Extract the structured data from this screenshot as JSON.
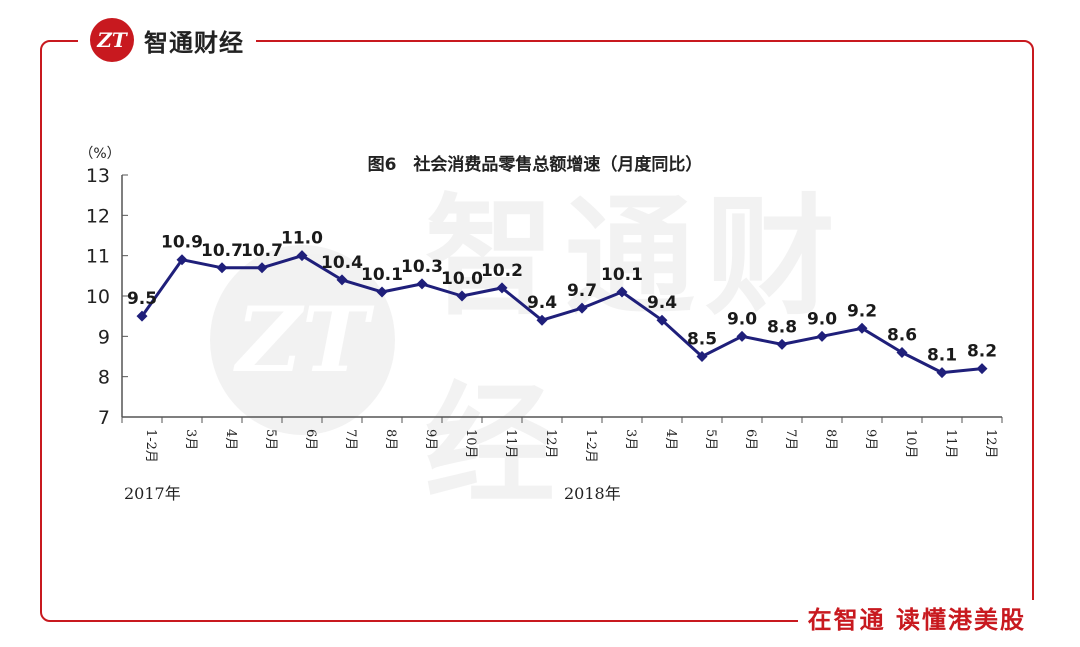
{
  "brand": {
    "logo_text": "ZT",
    "name": "智通财经"
  },
  "slogan": "在智通 读懂港美股",
  "watermark": {
    "logo_text": "ZT",
    "text": "智通财经"
  },
  "chart_data": {
    "type": "line",
    "title": "图6　社会消费品零售总额增速（月度同比）",
    "ylabel": "（%）",
    "ylim": [
      7,
      13
    ],
    "yticks": [
      7,
      8,
      9,
      10,
      11,
      12,
      13
    ],
    "categories": [
      "1-2月",
      "3月",
      "4月",
      "5月",
      "6月",
      "7月",
      "8月",
      "9月",
      "10月",
      "11月",
      "12月",
      "1-2月",
      "3月",
      "4月",
      "5月",
      "6月",
      "7月",
      "8月",
      "9月",
      "10月",
      "11月",
      "12月"
    ],
    "year_groups": [
      {
        "label": "2017年",
        "start_index": 0
      },
      {
        "label": "2018年",
        "start_index": 11
      }
    ],
    "series": [
      {
        "values": [
          9.5,
          10.9,
          10.7,
          10.7,
          11.0,
          10.4,
          10.1,
          10.3,
          10.0,
          10.2,
          9.4,
          9.7,
          10.1,
          9.4,
          8.5,
          9.0,
          8.8,
          9.0,
          9.2,
          8.6,
          8.1,
          8.2
        ],
        "labels": [
          "9.5",
          "10.9",
          "10.7",
          "10.7",
          "11.0",
          "10.4",
          "10.1",
          "10.3",
          "10.0",
          "10.2",
          "9.4",
          "9.7",
          "10.1",
          "9.4",
          "8.5",
          "9.0",
          "8.8",
          "9.0",
          "9.2",
          "8.6",
          "8.1",
          "8.2"
        ],
        "color": "#1f1f7a"
      }
    ],
    "grid": false,
    "legend": "none"
  }
}
